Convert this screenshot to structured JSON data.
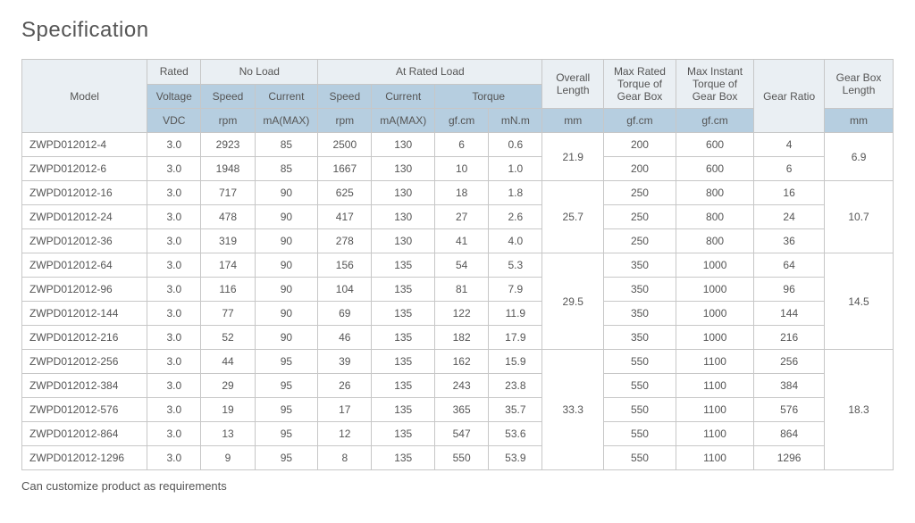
{
  "title": "Specification",
  "note": "Can customize product as requirements",
  "table": {
    "header_row1": {
      "model": "Model",
      "rated": "Rated",
      "noload": "No Load",
      "atrated": "At Rated Load",
      "ovl": "Overall Length",
      "mrtq": "Max Rated Torque of Gear Box",
      "mitq": "Max Instant Torque of Gear Box",
      "ratio": "Gear Ratio",
      "gbl": "Gear Box Length"
    },
    "header_row2": {
      "voltage": "Voltage",
      "speed": "Speed",
      "current": "Current",
      "speed2": "Speed",
      "current2": "Current",
      "torque": "Torque"
    },
    "header_row3": {
      "vdc": "VDC",
      "rpm1": "rpm",
      "ma1": "mA(MAX)",
      "rpm2": "rpm",
      "ma2": "mA(MAX)",
      "gfcm": "gf.cm",
      "mnm": "mN.m",
      "mm1": "mm",
      "gfcm2": "gf.cm",
      "gfcm3": "gf.cm",
      "mm2": "mm"
    },
    "groups": [
      {
        "ovl": "21.9",
        "gbl": "6.9",
        "rows": [
          {
            "model": "ZWPD012012-4",
            "v": "3.0",
            "nls": "2923",
            "nlc": "85",
            "rs": "2500",
            "rc": "130",
            "t1": "6",
            "t2": "0.6",
            "mrtq": "200",
            "mitq": "600",
            "ratio": "4"
          },
          {
            "model": "ZWPD012012-6",
            "v": "3.0",
            "nls": "1948",
            "nlc": "85",
            "rs": "1667",
            "rc": "130",
            "t1": "10",
            "t2": "1.0",
            "mrtq": "200",
            "mitq": "600",
            "ratio": "6"
          }
        ]
      },
      {
        "ovl": "25.7",
        "gbl": "10.7",
        "rows": [
          {
            "model": "ZWPD012012-16",
            "v": "3.0",
            "nls": "717",
            "nlc": "90",
            "rs": "625",
            "rc": "130",
            "t1": "18",
            "t2": "1.8",
            "mrtq": "250",
            "mitq": "800",
            "ratio": "16"
          },
          {
            "model": "ZWPD012012-24",
            "v": "3.0",
            "nls": "478",
            "nlc": "90",
            "rs": "417",
            "rc": "130",
            "t1": "27",
            "t2": "2.6",
            "mrtq": "250",
            "mitq": "800",
            "ratio": "24"
          },
          {
            "model": "ZWPD012012-36",
            "v": "3.0",
            "nls": "319",
            "nlc": "90",
            "rs": "278",
            "rc": "130",
            "t1": "41",
            "t2": "4.0",
            "mrtq": "250",
            "mitq": "800",
            "ratio": "36"
          }
        ]
      },
      {
        "ovl": "29.5",
        "gbl": "14.5",
        "rows": [
          {
            "model": "ZWPD012012-64",
            "v": "3.0",
            "nls": "174",
            "nlc": "90",
            "rs": "156",
            "rc": "135",
            "t1": "54",
            "t2": "5.3",
            "mrtq": "350",
            "mitq": "1000",
            "ratio": "64"
          },
          {
            "model": "ZWPD012012-96",
            "v": "3.0",
            "nls": "116",
            "nlc": "90",
            "rs": "104",
            "rc": "135",
            "t1": "81",
            "t2": "7.9",
            "mrtq": "350",
            "mitq": "1000",
            "ratio": "96"
          },
          {
            "model": "ZWPD012012-144",
            "v": "3.0",
            "nls": "77",
            "nlc": "90",
            "rs": "69",
            "rc": "135",
            "t1": "122",
            "t2": "11.9",
            "mrtq": "350",
            "mitq": "1000",
            "ratio": "144"
          },
          {
            "model": "ZWPD012012-216",
            "v": "3.0",
            "nls": "52",
            "nlc": "90",
            "rs": "46",
            "rc": "135",
            "t1": "182",
            "t2": "17.9",
            "mrtq": "350",
            "mitq": "1000",
            "ratio": "216"
          }
        ]
      },
      {
        "ovl": "33.3",
        "gbl": "18.3",
        "rows": [
          {
            "model": "ZWPD012012-256",
            "v": "3.0",
            "nls": "44",
            "nlc": "95",
            "rs": "39",
            "rc": "135",
            "t1": "162",
            "t2": "15.9",
            "mrtq": "550",
            "mitq": "1100",
            "ratio": "256"
          },
          {
            "model": "ZWPD012012-384",
            "v": "3.0",
            "nls": "29",
            "nlc": "95",
            "rs": "26",
            "rc": "135",
            "t1": "243",
            "t2": "23.8",
            "mrtq": "550",
            "mitq": "1100",
            "ratio": "384"
          },
          {
            "model": "ZWPD012012-576",
            "v": "3.0",
            "nls": "19",
            "nlc": "95",
            "rs": "17",
            "rc": "135",
            "t1": "365",
            "t2": "35.7",
            "mrtq": "550",
            "mitq": "1100",
            "ratio": "576"
          },
          {
            "model": "ZWPD012012-864",
            "v": "3.0",
            "nls": "13",
            "nlc": "95",
            "rs": "12",
            "rc": "135",
            "t1": "547",
            "t2": "53.6",
            "mrtq": "550",
            "mitq": "1100",
            "ratio": "864"
          },
          {
            "model": "ZWPD012012-1296",
            "v": "3.0",
            "nls": "9",
            "nlc": "95",
            "rs": "8",
            "rc": "135",
            "t1": "550",
            "t2": "53.9",
            "mrtq": "550",
            "mitq": "1100",
            "ratio": "1296"
          }
        ]
      }
    ]
  },
  "style": {
    "header_bg": "#b6cee0",
    "header_light_bg": "#eaeff3",
    "border_color": "#c7c7c7",
    "text_color": "#555555",
    "title_fontsize": 24,
    "cell_fontsize": 12
  }
}
